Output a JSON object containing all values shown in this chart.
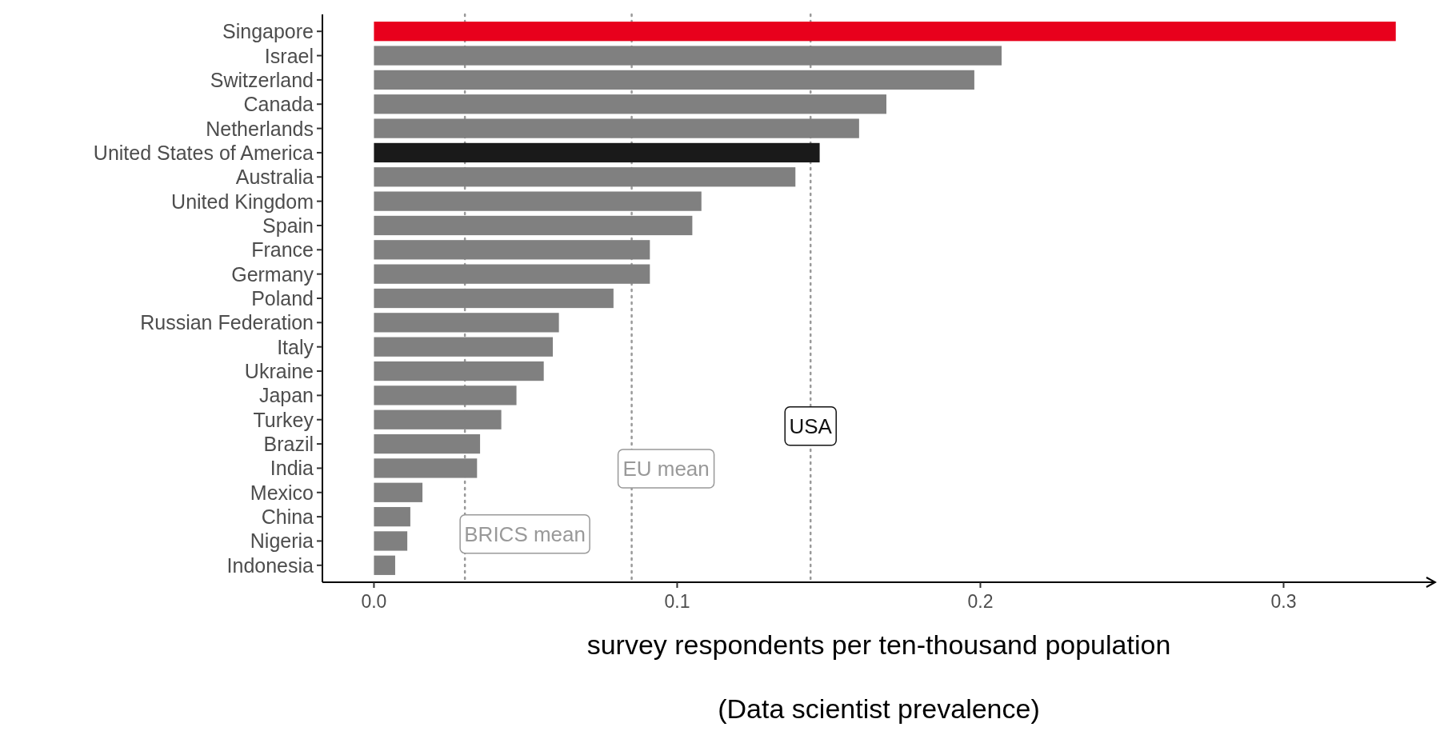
{
  "chart_data": {
    "type": "bar",
    "orientation": "horizontal",
    "xlabel": "survey respondents per ten-thousand population",
    "annotations": [
      "(Data scientist prevalence)"
    ],
    "categories": [
      "Singapore",
      "Israel",
      "Switzerland",
      "Canada",
      "Netherlands",
      "United States of America",
      "Australia",
      "United Kingdom",
      "Spain",
      "France",
      "Germany",
      "Poland",
      "Russian Federation",
      "Italy",
      "Ukraine",
      "Japan",
      "Turkey",
      "Brazil",
      "India",
      "Mexico",
      "China",
      "Nigeria",
      "Indonesia"
    ],
    "values": [
      0.337,
      0.207,
      0.198,
      0.169,
      0.16,
      0.147,
      0.139,
      0.108,
      0.105,
      0.091,
      0.091,
      0.079,
      0.061,
      0.059,
      0.056,
      0.047,
      0.042,
      0.035,
      0.034,
      0.016,
      0.012,
      0.011,
      0.007
    ],
    "colors": [
      "#e8001c",
      "#808080",
      "#808080",
      "#808080",
      "#808080",
      "#1a1a1a",
      "#808080",
      "#808080",
      "#808080",
      "#808080",
      "#808080",
      "#808080",
      "#808080",
      "#808080",
      "#808080",
      "#808080",
      "#808080",
      "#808080",
      "#808080",
      "#808080",
      "#808080",
      "#808080",
      "#808080"
    ],
    "xlim": [
      -0.017,
      0.35
    ],
    "xticks": [
      {
        "value": 0,
        "label": "0.0"
      },
      {
        "value": 0.1,
        "label": "0.1"
      },
      {
        "value": 0.2,
        "label": "0.2"
      },
      {
        "value": 0.3,
        "label": "0.3"
      }
    ],
    "ref_lines": [
      {
        "axis": "x",
        "value": 0.03,
        "label": "BRICS mean",
        "color": "#999999",
        "line_style": "dotted"
      },
      {
        "axis": "x",
        "value": 0.085,
        "label": "EU mean",
        "color": "#999999",
        "line_style": "dotted"
      },
      {
        "axis": "x",
        "value": 0.144,
        "label": "USA",
        "color": "#999999",
        "line_style": "dotted"
      }
    ],
    "grid": false
  }
}
